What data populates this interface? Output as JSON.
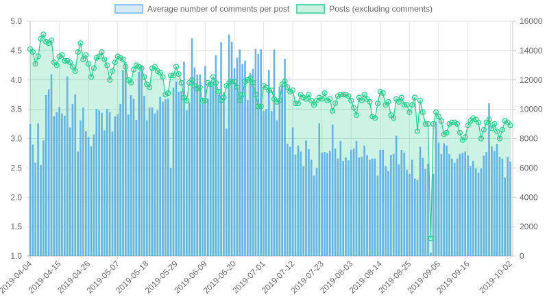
{
  "chart_data": {
    "type": "bar+line",
    "x_start": "2019-04-04",
    "x_tick_labels": [
      "2019-04-04",
      "2019-04-15",
      "2019-04-26",
      "2019-05-07",
      "2019-05-18",
      "2019-05-29",
      "2019-06-09",
      "2019-06-20",
      "2019-07-01",
      "2019-07-12",
      "2019-07-23",
      "2019-08-03",
      "2019-08-14",
      "2019-08-25",
      "2019-09-05",
      "2019-09-16",
      "2019-10-02"
    ],
    "x_tick_day_index": [
      0,
      11,
      22,
      33,
      44,
      55,
      66,
      77,
      88,
      99,
      110,
      121,
      132,
      143,
      154,
      165,
      181
    ],
    "left_axis": {
      "ylim": [
        1.0,
        5.0
      ],
      "ticks": [
        "1.0",
        "1.5",
        "2.0",
        "2.5",
        "3.0",
        "3.5",
        "4.0",
        "4.5",
        "5.0"
      ]
    },
    "right_axis": {
      "ylim": [
        0,
        16000
      ],
      "ticks": [
        "0",
        "2000",
        "4000",
        "6000",
        "8000",
        "10000",
        "12000",
        "14000",
        "16000"
      ]
    },
    "grid": true,
    "legend_position": "top",
    "series": [
      {
        "name": "Average number of comments per post",
        "type": "bar",
        "axis": "left",
        "color": "#5dade2",
        "values": [
          3.25,
          2.9,
          2.59,
          3.26,
          2.55,
          2.97,
          3.74,
          3.84,
          4.1,
          3.38,
          3.45,
          3.54,
          3.43,
          3.39,
          4.06,
          3.19,
          3.59,
          3.75,
          2.78,
          3.31,
          3.53,
          3.13,
          3.03,
          2.87,
          3.07,
          3.51,
          3.48,
          3.44,
          3.14,
          3.51,
          3.45,
          3.12,
          3.38,
          3.42,
          3.59,
          4.17,
          4.3,
          3.41,
          3.74,
          3.68,
          3.32,
          4.14,
          4.25,
          3.73,
          3.31,
          3.53,
          3.53,
          3.43,
          3.48,
          3.71,
          3.63,
          3.67,
          3.68,
          2.5,
          3.87,
          3.97,
          3.8,
          3.81,
          4.31,
          3.48,
          3.62,
          4.71,
          4.21,
          4.09,
          4.09,
          3.6,
          4.24,
          3.68,
          3.97,
          3.97,
          4.42,
          3.74,
          4.64,
          3.79,
          3.17,
          4.77,
          4.65,
          4.2,
          4.38,
          4.52,
          4.27,
          4.33,
          3.66,
          4.12,
          4.19,
          4.53,
          4.44,
          4.52,
          3.47,
          3.5,
          4.17,
          3.47,
          4.52,
          3.31,
          3.89,
          3.93,
          4.36,
          2.91,
          2.86,
          3.19,
          2.73,
          2.88,
          2.78,
          2.53,
          2.97,
          2.82,
          2.64,
          2.37,
          2.5,
          3.26,
          2.76,
          2.77,
          2.75,
          2.79,
          3.24,
          2.83,
          2.66,
          2.96,
          2.62,
          2.68,
          2.63,
          2.81,
          2.83,
          2.96,
          2.68,
          2.69,
          2.88,
          2.72,
          2.64,
          2.66,
          2.66,
          2.37,
          2.81,
          2.81,
          2.53,
          2.45,
          2.72,
          2.74,
          3.05,
          2.56,
          2.81,
          2.76,
          2.47,
          2.4,
          2.64,
          2.32,
          2.3,
          2.86,
          2.67,
          2.48,
          2.57,
          1.06,
          2.4,
          3.29,
          2.93,
          2.74,
          2.92,
          2.88,
          2.74,
          2.66,
          2.59,
          2.66,
          2.74,
          2.76,
          2.78,
          2.71,
          2.53,
          2.62,
          2.49,
          2.42,
          2.49,
          2.71,
          2.77,
          3.6,
          2.87,
          2.79,
          2.91,
          2.69,
          2.66,
          2.34,
          2.69,
          2.61
        ]
      },
      {
        "name": "Posts (excluding comments)",
        "type": "line",
        "axis": "right",
        "color": "#2ecc8f",
        "values": [
          14100,
          13900,
          13100,
          13600,
          14800,
          15100,
          14600,
          14500,
          14700,
          13200,
          13000,
          13600,
          13700,
          13300,
          13300,
          13200,
          12900,
          12600,
          13900,
          14500,
          13400,
          13700,
          13100,
          12200,
          12800,
          13500,
          13600,
          13900,
          13400,
          13000,
          12000,
          12600,
          13200,
          13600,
          13500,
          13400,
          12900,
          12000,
          11800,
          12700,
          13000,
          12900,
          12800,
          12200,
          11700,
          11500,
          12800,
          12900,
          12600,
          12500,
          12200,
          11000,
          11100,
          12300,
          12300,
          12900,
          12400,
          11800,
          10800,
          10600,
          11800,
          12000,
          11600,
          11400,
          11500,
          10600,
          10600,
          11800,
          11700,
          12200,
          11800,
          11200,
          10600,
          10800,
          11600,
          11800,
          11900,
          11900,
          11500,
          10600,
          11000,
          11900,
          12000,
          12100,
          11800,
          11000,
          10200,
          10200,
          11600,
          11500,
          11300,
          11300,
          10700,
          10500,
          10600,
          11700,
          11900,
          11500,
          11200,
          11300,
          10400,
          10400,
          11000,
          10800,
          10700,
          11000,
          10600,
          10300,
          10600,
          10800,
          10700,
          11100,
          10600,
          10700,
          9900,
          10400,
          10900,
          11000,
          11000,
          11000,
          10900,
          10600,
          10100,
          9600,
          10800,
          10600,
          11000,
          10700,
          10500,
          9500,
          9400,
          10400,
          11200,
          11100,
          10300,
          10500,
          9600,
          9400,
          10700,
          10500,
          10800,
          10300,
          10300,
          9800,
          10300,
          10800,
          8500,
          10600,
          9800,
          9000,
          9000,
          1200,
          9000,
          9800,
          9500,
          9200,
          8300,
          8400,
          9000,
          9100,
          9100,
          9000,
          8400,
          7900,
          8100,
          8900,
          9200,
          9400,
          9300,
          9100,
          8000,
          8600,
          9100,
          9300,
          8700,
          9000,
          8500,
          8000,
          8600,
          9200,
          9100,
          8900
        ]
      }
    ]
  }
}
